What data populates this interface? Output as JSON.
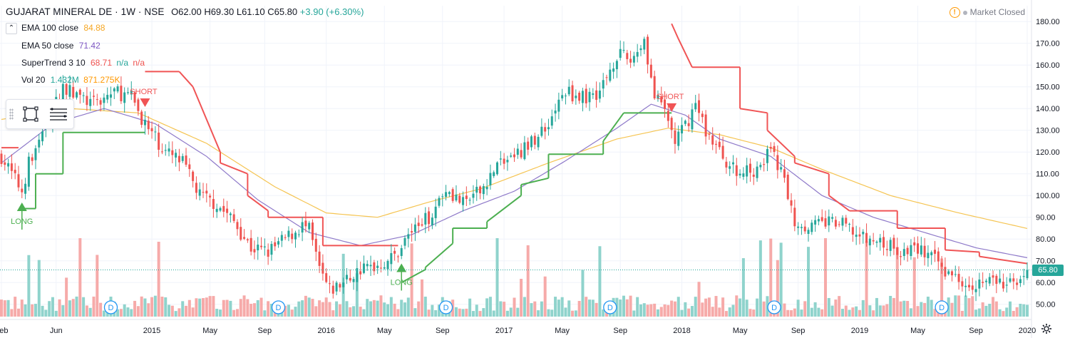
{
  "header": {
    "symbol": "GUJARAT MINERAL DE · 1W · NSE",
    "ohlc": "O62.00  H69.30  L61.10  C65.80",
    "change": "+3.90 (+6.30%)"
  },
  "status": {
    "text": "Market Closed"
  },
  "indicators": [
    {
      "name": "EMA 100 close",
      "value": "84.88",
      "value_color": "#f5a623"
    },
    {
      "name": "EMA 50 close",
      "value": "71.42",
      "value_color": "#7e57c2"
    },
    {
      "name": "SuperTrend 3 10",
      "value": "68.71",
      "value_color": "#ef5350",
      "extra1": "n/a",
      "extra1_color": "#26a69a",
      "extra2": "n/a",
      "extra2_color": "#ef5350"
    },
    {
      "name": "Vol 20",
      "value": "1.432M",
      "value_color": "#26a69a",
      "extra1": "871.275K",
      "extra1_color": "#ff9800"
    }
  ],
  "last_price_label": "65.80",
  "chart_data": {
    "type": "candlestick",
    "x_tick_labels": [
      "Feb",
      "Jun",
      "2015",
      "May",
      "Sep",
      "2016",
      "May",
      "Sep",
      "2017",
      "May",
      "Sep",
      "2018",
      "May",
      "Sep",
      "2019",
      "May",
      "Sep",
      "2020"
    ],
    "y_tick_labels": [
      "180.00",
      "170.00",
      "160.00",
      "150.00",
      "140.00",
      "130.00",
      "120.00",
      "110.00",
      "100.00",
      "90.00",
      "80.00",
      "70.00",
      "60.00",
      "50.00"
    ],
    "ylim": [
      45,
      184
    ],
    "close_anchors": [
      [
        0,
        118
      ],
      [
        6,
        102
      ],
      [
        8,
        115
      ],
      [
        12,
        128
      ],
      [
        18,
        150
      ],
      [
        23,
        145
      ],
      [
        27,
        142
      ],
      [
        33,
        148
      ],
      [
        38,
        145
      ],
      [
        43,
        130
      ],
      [
        48,
        120
      ],
      [
        53,
        115
      ],
      [
        58,
        100
      ],
      [
        63,
        96
      ],
      [
        68,
        88
      ],
      [
        73,
        76
      ],
      [
        78,
        74
      ],
      [
        83,
        80
      ],
      [
        88,
        86
      ],
      [
        90,
        84
      ],
      [
        93,
        66
      ],
      [
        96,
        56
      ],
      [
        100,
        60
      ],
      [
        105,
        66
      ],
      [
        110,
        68
      ],
      [
        115,
        72
      ],
      [
        120,
        84
      ],
      [
        125,
        90
      ],
      [
        130,
        104
      ],
      [
        135,
        96
      ],
      [
        140,
        102
      ],
      [
        145,
        114
      ],
      [
        150,
        118
      ],
      [
        155,
        124
      ],
      [
        160,
        134
      ],
      [
        165,
        148
      ],
      [
        170,
        145
      ],
      [
        175,
        148
      ],
      [
        180,
        165
      ],
      [
        184,
        162
      ],
      [
        188,
        172
      ],
      [
        191,
        145
      ],
      [
        194,
        139
      ],
      [
        197,
        125
      ],
      [
        200,
        132
      ],
      [
        203,
        142
      ],
      [
        206,
        130
      ],
      [
        210,
        120
      ],
      [
        215,
        110
      ],
      [
        220,
        112
      ],
      [
        225,
        120
      ],
      [
        228,
        112
      ],
      [
        232,
        88
      ],
      [
        237,
        86
      ],
      [
        242,
        88
      ],
      [
        247,
        86
      ],
      [
        252,
        80
      ],
      [
        258,
        78
      ],
      [
        263,
        74
      ],
      [
        268,
        76
      ],
      [
        273,
        70
      ],
      [
        278,
        63
      ],
      [
        284,
        60
      ],
      [
        290,
        61
      ],
      [
        294,
        58
      ],
      [
        300,
        65.8
      ]
    ],
    "ema100_anchors": [
      [
        0,
        135
      ],
      [
        20,
        140
      ],
      [
        40,
        138
      ],
      [
        60,
        124
      ],
      [
        80,
        104
      ],
      [
        95,
        92
      ],
      [
        110,
        90
      ],
      [
        125,
        97
      ],
      [
        140,
        103
      ],
      [
        160,
        115
      ],
      [
        180,
        126
      ],
      [
        195,
        131
      ],
      [
        210,
        128
      ],
      [
        225,
        122
      ],
      [
        240,
        112
      ],
      [
        260,
        100
      ],
      [
        280,
        92
      ],
      [
        300,
        84.88
      ]
    ],
    "ema50_anchors": [
      [
        0,
        115
      ],
      [
        15,
        133
      ],
      [
        30,
        140
      ],
      [
        45,
        133
      ],
      [
        60,
        118
      ],
      [
        75,
        98
      ],
      [
        90,
        83
      ],
      [
        105,
        77
      ],
      [
        120,
        82
      ],
      [
        135,
        93
      ],
      [
        150,
        102
      ],
      [
        165,
        116
      ],
      [
        180,
        131
      ],
      [
        190,
        142
      ],
      [
        200,
        137
      ],
      [
        210,
        126
      ],
      [
        225,
        118
      ],
      [
        240,
        100
      ],
      [
        255,
        90
      ],
      [
        270,
        83
      ],
      [
        285,
        76
      ],
      [
        300,
        71.42
      ]
    ],
    "supertrend": [
      {
        "x0": 0,
        "x1": 5,
        "v0": 122,
        "v1": 122,
        "dir": "down"
      },
      {
        "x0": 6,
        "x1": 10,
        "v0": 94,
        "v1": 94,
        "dir": "up"
      },
      {
        "x0": 10,
        "x1": 18,
        "v0": 110,
        "v1": 110,
        "dir": "up"
      },
      {
        "x0": 18,
        "x1": 42,
        "v0": 129,
        "v1": 129,
        "dir": "up"
      },
      {
        "x0": 42,
        "x1": 52,
        "v0": 157,
        "v1": 157,
        "dir": "down"
      },
      {
        "x0": 52,
        "x1": 56,
        "v0": 157,
        "v1": 150,
        "dir": "down"
      },
      {
        "x0": 56,
        "x1": 64,
        "v0": 150,
        "v1": 120,
        "dir": "down"
      },
      {
        "x0": 64,
        "x1": 72,
        "v0": 115,
        "v1": 110,
        "dir": "down"
      },
      {
        "x0": 72,
        "x1": 78,
        "v0": 100,
        "v1": 93,
        "dir": "down"
      },
      {
        "x0": 78,
        "x1": 94,
        "v0": 90,
        "v1": 90,
        "dir": "down"
      },
      {
        "x0": 94,
        "x1": 116,
        "v0": 77,
        "v1": 77,
        "dir": "down"
      },
      {
        "x0": 117,
        "x1": 124,
        "v0": 60,
        "v1": 66,
        "dir": "up"
      },
      {
        "x0": 124,
        "x1": 132,
        "v0": 67,
        "v1": 78,
        "dir": "up"
      },
      {
        "x0": 132,
        "x1": 142,
        "v0": 85,
        "v1": 85,
        "dir": "up"
      },
      {
        "x0": 142,
        "x1": 152,
        "v0": 88,
        "v1": 100,
        "dir": "up"
      },
      {
        "x0": 152,
        "x1": 160,
        "v0": 105,
        "v1": 108,
        "dir": "up"
      },
      {
        "x0": 160,
        "x1": 176,
        "v0": 119,
        "v1": 119,
        "dir": "up"
      },
      {
        "x0": 176,
        "x1": 182,
        "v0": 125,
        "v1": 138,
        "dir": "up"
      },
      {
        "x0": 182,
        "x1": 196,
        "v0": 138,
        "v1": 138,
        "dir": "up"
      },
      {
        "x0": 196,
        "x1": 198,
        "v0": 179,
        "v1": 172,
        "dir": "down"
      },
      {
        "x0": 198,
        "x1": 202,
        "v0": 172,
        "v1": 159,
        "dir": "down"
      },
      {
        "x0": 202,
        "x1": 216,
        "v0": 159,
        "v1": 159,
        "dir": "down"
      },
      {
        "x0": 216,
        "x1": 224,
        "v0": 140,
        "v1": 138,
        "dir": "down"
      },
      {
        "x0": 224,
        "x1": 232,
        "v0": 130,
        "v1": 118,
        "dir": "down"
      },
      {
        "x0": 232,
        "x1": 242,
        "v0": 115,
        "v1": 110,
        "dir": "down"
      },
      {
        "x0": 242,
        "x1": 248,
        "v0": 100,
        "v1": 93,
        "dir": "down"
      },
      {
        "x0": 248,
        "x1": 262,
        "v0": 93,
        "v1": 93,
        "dir": "down"
      },
      {
        "x0": 262,
        "x1": 276,
        "v0": 85,
        "v1": 85,
        "dir": "down"
      },
      {
        "x0": 276,
        "x1": 286,
        "v0": 75,
        "v1": 74,
        "dir": "down"
      },
      {
        "x0": 286,
        "x1": 300,
        "v0": 72,
        "v1": 68.71,
        "dir": "down"
      }
    ],
    "signals": [
      {
        "index": 6,
        "label": "LONG",
        "type": "long"
      },
      {
        "index": 42,
        "label": "SHORT",
        "type": "short"
      },
      {
        "index": 117,
        "label": "LONG",
        "type": "long"
      },
      {
        "index": 196,
        "label": "SHORT",
        "type": "short"
      }
    ],
    "dividend_markers": [
      {
        "index": 32,
        "label": "D"
      },
      {
        "index": 81,
        "label": "D"
      },
      {
        "index": 130,
        "label": "D"
      },
      {
        "index": 178,
        "label": "D"
      },
      {
        "index": 226,
        "label": "D"
      },
      {
        "index": 275,
        "label": "D"
      }
    ],
    "last_close": 65.8,
    "colors": {
      "up": "#26a69a",
      "down": "#ef5350",
      "vol_up": "#8fd3cc",
      "vol_down": "#f6aaa9",
      "ema100": "#f5c451",
      "ema50": "#8e79c9",
      "st_up": "#4caf50",
      "st_down": "#f05455",
      "grid": "#f0f3fa",
      "axis_text": "#131722"
    }
  }
}
